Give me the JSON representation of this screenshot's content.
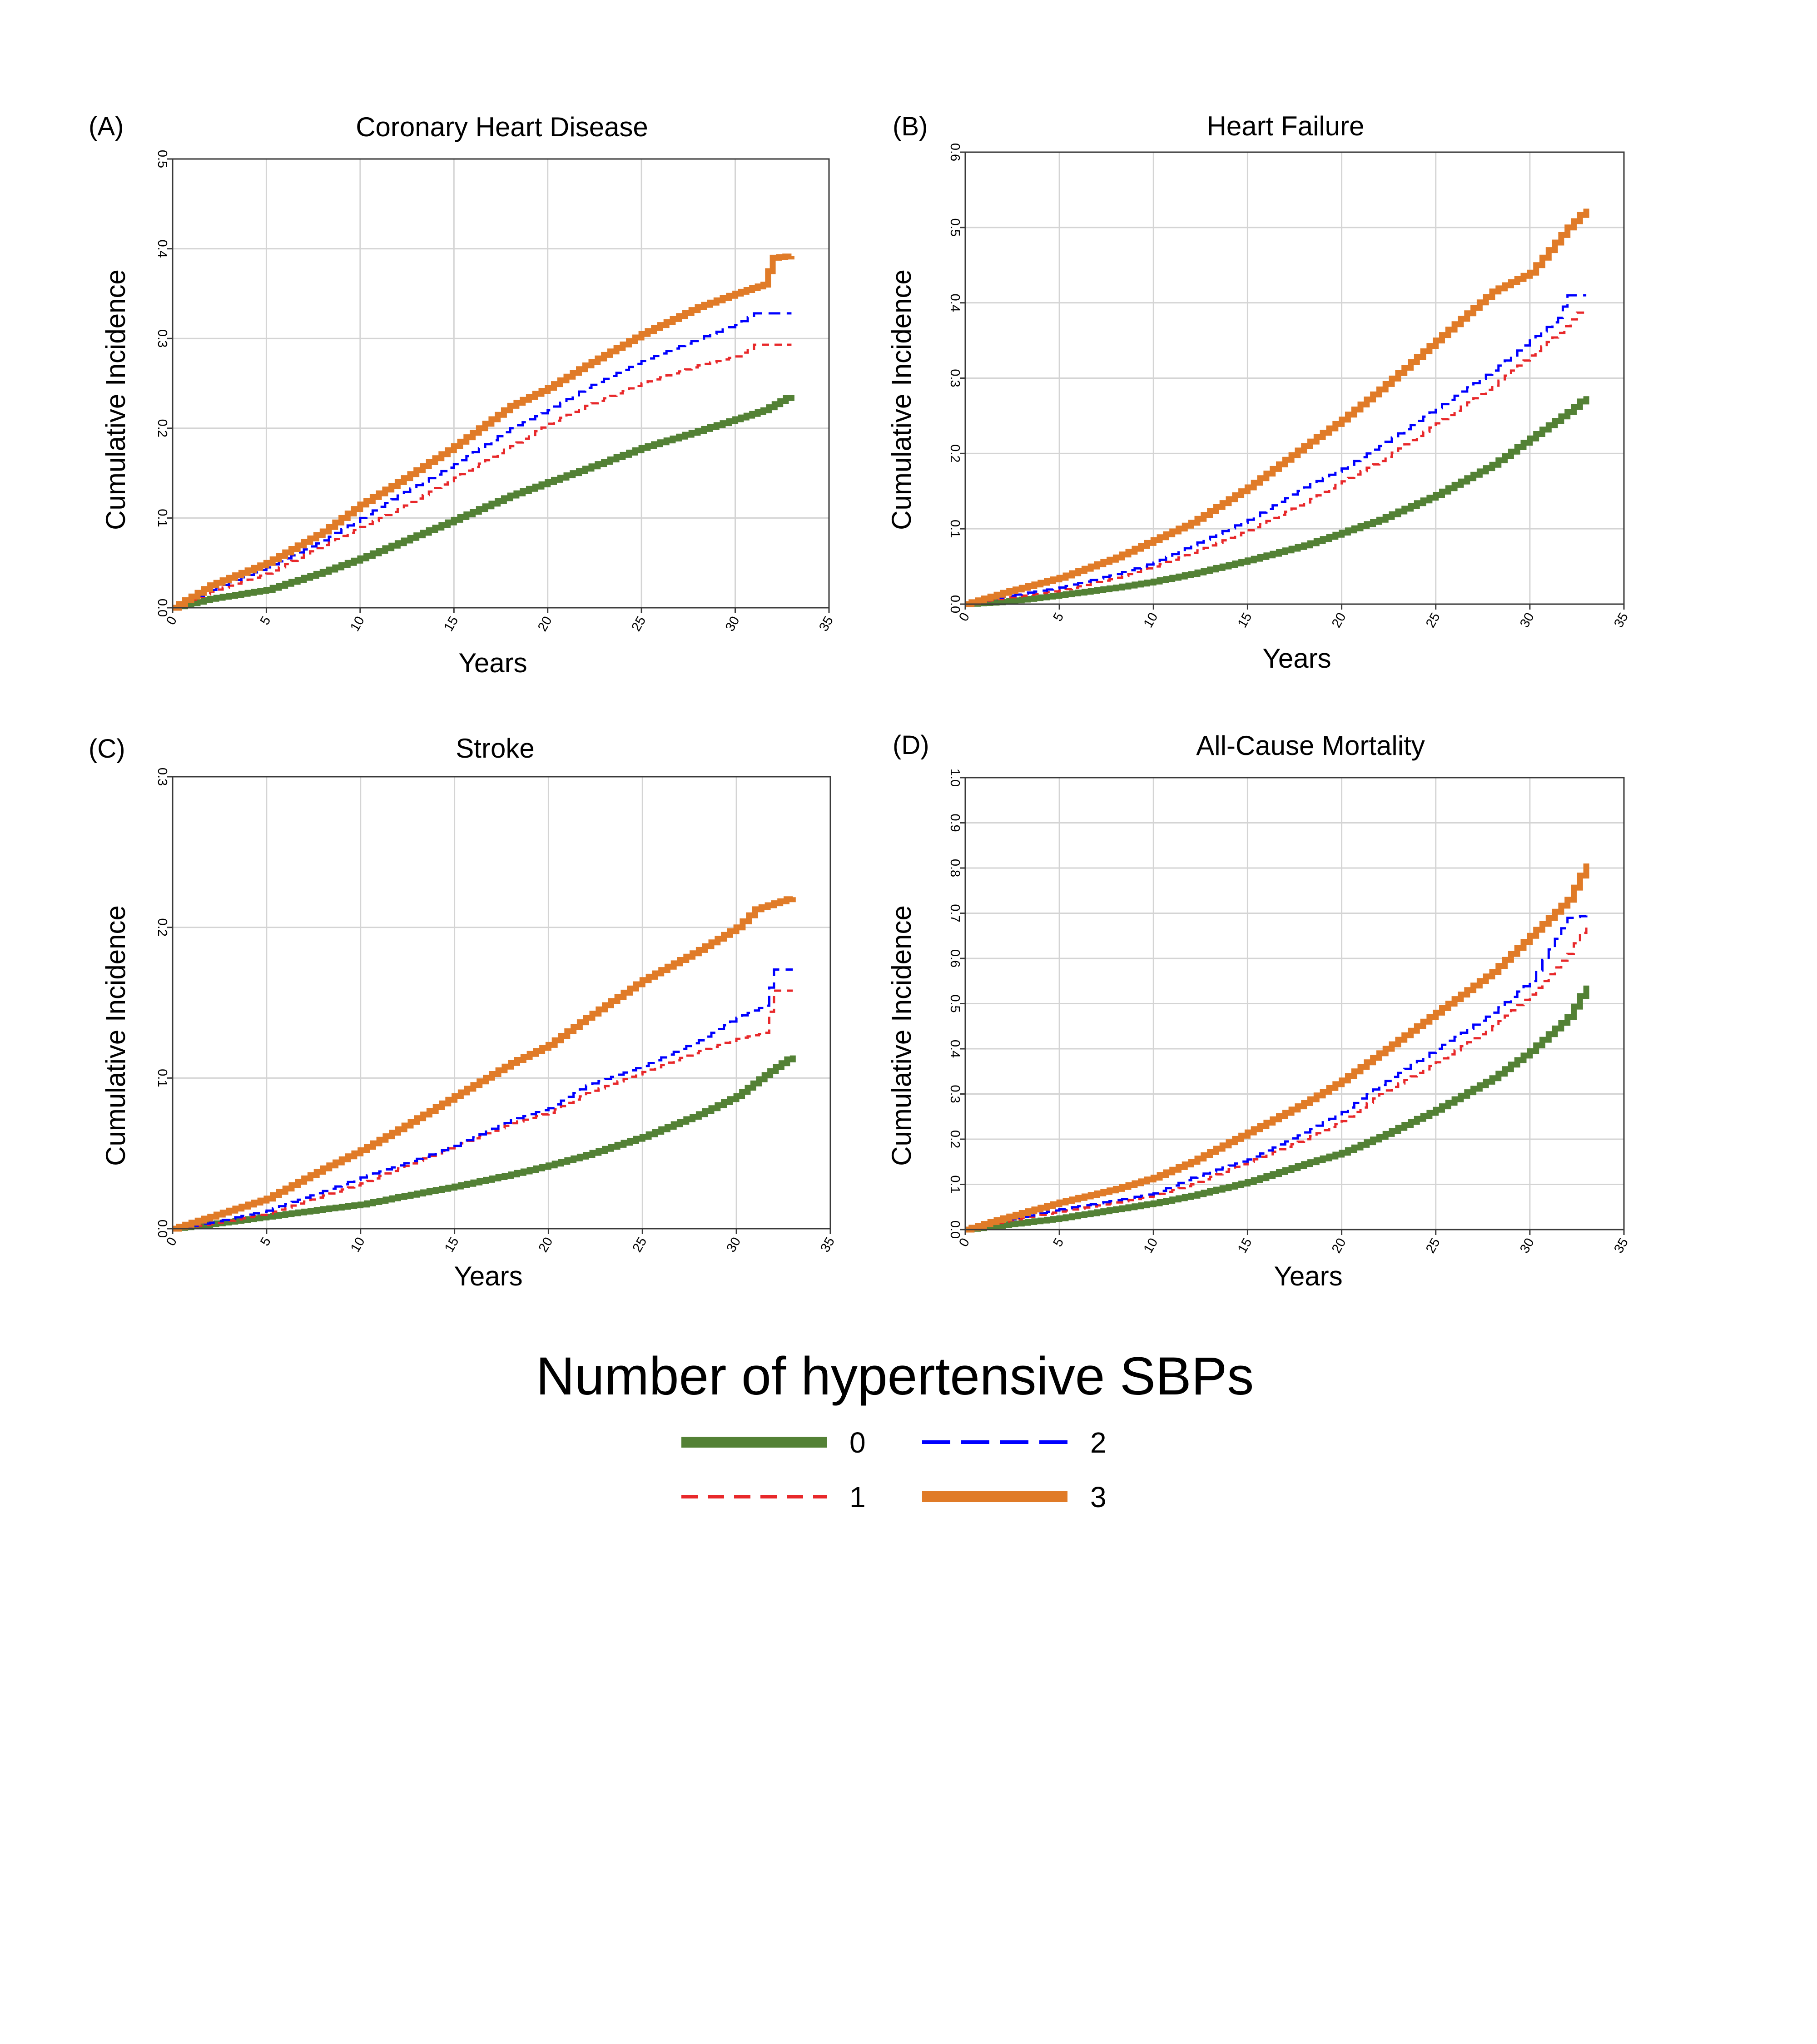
{
  "legend": {
    "title": "Number of hypertensive SBPs",
    "entries": [
      {
        "label": "0",
        "color": "#538135",
        "style": "solid"
      },
      {
        "label": "2",
        "color": "#0000ff",
        "style": "dashed"
      },
      {
        "label": "1",
        "color": "#e8282a",
        "style": "dashed"
      },
      {
        "label": "3",
        "color": "#e07b28",
        "style": "solid"
      }
    ]
  },
  "chart_data": [
    {
      "type": "line",
      "panel": "(A)",
      "title": "Coronary Heart Disease",
      "xlabel": "Years",
      "ylabel": "Cumulative Incidence",
      "xlim": [
        0,
        35
      ],
      "ylim": [
        0,
        0.5
      ],
      "xticks": [
        "0",
        "5",
        "10",
        "15",
        "20",
        "25",
        "30",
        "35"
      ],
      "yticks": [
        "0.0",
        "0.1",
        "0.2",
        "0.3",
        "0.4",
        "0.5"
      ],
      "series": [
        {
          "name": "0",
          "x": [
            0,
            2,
            5,
            8,
            10,
            12,
            15,
            18,
            20,
            22,
            25,
            28,
            30,
            31.5,
            33
          ],
          "y": [
            0,
            0.01,
            0.02,
            0.04,
            0.055,
            0.072,
            0.098,
            0.125,
            0.14,
            0.155,
            0.178,
            0.197,
            0.21,
            0.22,
            0.237
          ]
        },
        {
          "name": "1",
          "x": [
            0,
            2,
            5,
            8,
            10,
            12,
            15,
            18,
            20,
            22,
            25,
            28,
            30,
            31,
            33
          ],
          "y": [
            0,
            0.018,
            0.038,
            0.07,
            0.09,
            0.11,
            0.145,
            0.18,
            0.205,
            0.225,
            0.25,
            0.27,
            0.28,
            0.293,
            0.293
          ]
        },
        {
          "name": "2",
          "x": [
            0,
            2,
            5,
            8,
            10,
            12,
            15,
            18,
            20,
            22,
            25,
            28,
            30,
            31,
            33
          ],
          "y": [
            0,
            0.02,
            0.045,
            0.075,
            0.1,
            0.125,
            0.16,
            0.2,
            0.22,
            0.245,
            0.275,
            0.3,
            0.315,
            0.328,
            0.328
          ]
        },
        {
          "name": "3",
          "x": [
            0,
            2,
            5,
            8,
            10,
            12,
            15,
            18,
            20,
            22,
            25,
            28,
            30,
            31.5,
            32,
            33
          ],
          "y": [
            0,
            0.025,
            0.05,
            0.085,
            0.115,
            0.14,
            0.18,
            0.225,
            0.245,
            0.27,
            0.305,
            0.335,
            0.35,
            0.36,
            0.39,
            0.392
          ]
        }
      ]
    },
    {
      "type": "line",
      "panel": "(B)",
      "title": "Heart Failure",
      "xlabel": "Years",
      "ylabel": "Cumulative Incidence",
      "xlim": [
        0,
        35
      ],
      "ylim": [
        0,
        0.6
      ],
      "xticks": [
        "0",
        "5",
        "10",
        "15",
        "20",
        "25",
        "30",
        "35"
      ],
      "yticks": [
        "0.0",
        "0.1",
        "0.2",
        "0.3",
        "0.4",
        "0.5",
        "0.6"
      ],
      "series": [
        {
          "name": "0",
          "x": [
            0,
            2,
            5,
            8,
            10,
            12,
            15,
            18,
            20,
            22,
            25,
            28,
            30,
            32,
            33
          ],
          "y": [
            0,
            0.003,
            0.012,
            0.022,
            0.03,
            0.04,
            0.058,
            0.078,
            0.095,
            0.112,
            0.145,
            0.185,
            0.22,
            0.255,
            0.276
          ]
        },
        {
          "name": "1",
          "x": [
            0,
            2,
            5,
            8,
            10,
            12,
            15,
            18,
            20,
            22,
            25,
            28,
            30,
            31.5,
            32.5,
            33
          ],
          "y": [
            0,
            0.008,
            0.018,
            0.035,
            0.05,
            0.068,
            0.098,
            0.135,
            0.163,
            0.19,
            0.24,
            0.29,
            0.33,
            0.36,
            0.387,
            0.387
          ]
        },
        {
          "name": "2",
          "x": [
            0,
            2,
            5,
            8,
            10,
            12,
            15,
            18,
            20,
            22,
            25,
            28,
            30,
            31.5,
            32,
            33
          ],
          "y": [
            0,
            0.01,
            0.022,
            0.04,
            0.055,
            0.078,
            0.112,
            0.155,
            0.18,
            0.21,
            0.26,
            0.31,
            0.35,
            0.38,
            0.41,
            0.41
          ]
        },
        {
          "name": "3",
          "x": [
            0,
            2,
            5,
            8,
            10,
            12,
            15,
            18,
            20,
            22,
            25,
            28,
            30,
            31,
            32,
            33
          ],
          "y": [
            0,
            0.015,
            0.035,
            0.062,
            0.085,
            0.108,
            0.155,
            0.21,
            0.245,
            0.285,
            0.35,
            0.415,
            0.44,
            0.47,
            0.5,
            0.525
          ]
        }
      ]
    },
    {
      "type": "line",
      "panel": "(C)",
      "title": "Stroke",
      "xlabel": "Years",
      "ylabel": "Cumulative Incidence",
      "xlim": [
        0,
        35
      ],
      "ylim": [
        0,
        0.3
      ],
      "xticks": [
        "0",
        "5",
        "10",
        "15",
        "20",
        "25",
        "30",
        "35"
      ],
      "yticks": [
        "0.0",
        "0.1",
        "0.2",
        "0.3"
      ],
      "series": [
        {
          "name": "0",
          "x": [
            0,
            2,
            5,
            8,
            10,
            12,
            15,
            18,
            20,
            22,
            25,
            28,
            30,
            31.5,
            33
          ],
          "y": [
            0,
            0.003,
            0.008,
            0.013,
            0.016,
            0.021,
            0.028,
            0.036,
            0.042,
            0.049,
            0.061,
            0.076,
            0.088,
            0.102,
            0.115
          ]
        },
        {
          "name": "1",
          "x": [
            0,
            2,
            5,
            8,
            10,
            12,
            15,
            18,
            20,
            22,
            25,
            28,
            30,
            31.5,
            32,
            33
          ],
          "y": [
            0,
            0.003,
            0.01,
            0.022,
            0.03,
            0.04,
            0.055,
            0.07,
            0.077,
            0.09,
            0.104,
            0.118,
            0.126,
            0.13,
            0.158,
            0.158
          ]
        },
        {
          "name": "2",
          "x": [
            0,
            2,
            5,
            8,
            10,
            12,
            15,
            18,
            20,
            22,
            25,
            28,
            30,
            31.5,
            32,
            33
          ],
          "y": [
            0,
            0.004,
            0.012,
            0.025,
            0.034,
            0.042,
            0.055,
            0.072,
            0.08,
            0.095,
            0.108,
            0.125,
            0.14,
            0.148,
            0.172,
            0.172
          ]
        },
        {
          "name": "3",
          "x": [
            0,
            2,
            5,
            8,
            10,
            12,
            15,
            18,
            20,
            22,
            25,
            28,
            30,
            31,
            33
          ],
          "y": [
            0,
            0.008,
            0.02,
            0.04,
            0.052,
            0.066,
            0.088,
            0.11,
            0.122,
            0.14,
            0.165,
            0.185,
            0.2,
            0.212,
            0.22
          ]
        }
      ]
    },
    {
      "type": "line",
      "panel": "(D)",
      "title": "All-Cause Mortality",
      "xlabel": "Years",
      "ylabel": "Cumulative Incidence",
      "xlim": [
        0,
        35
      ],
      "ylim": [
        0,
        1.0
      ],
      "xticks": [
        "0",
        "5",
        "10",
        "15",
        "20",
        "25",
        "30",
        "35"
      ],
      "yticks": [
        "0.0",
        "0.1",
        "0.2",
        "0.3",
        "0.4",
        "0.5",
        "0.6",
        "0.7",
        "0.8",
        "0.9",
        "1.0"
      ],
      "series": [
        {
          "name": "0",
          "x": [
            0,
            2,
            5,
            8,
            10,
            12,
            15,
            18,
            20,
            22,
            25,
            28,
            30,
            32,
            33
          ],
          "y": [
            0,
            0.01,
            0.025,
            0.045,
            0.058,
            0.075,
            0.105,
            0.145,
            0.17,
            0.205,
            0.265,
            0.335,
            0.395,
            0.47,
            0.54
          ]
        },
        {
          "name": "1",
          "x": [
            0,
            2,
            5,
            8,
            10,
            12,
            15,
            18,
            20,
            22,
            25,
            28,
            30,
            32,
            33
          ],
          "y": [
            0,
            0.018,
            0.04,
            0.06,
            0.075,
            0.1,
            0.15,
            0.2,
            0.24,
            0.3,
            0.37,
            0.45,
            0.52,
            0.61,
            0.68
          ]
        },
        {
          "name": "2",
          "x": [
            0,
            2,
            5,
            8,
            10,
            12,
            15,
            18,
            20,
            22,
            25,
            28,
            30,
            32,
            33
          ],
          "y": [
            0,
            0.02,
            0.045,
            0.065,
            0.08,
            0.115,
            0.155,
            0.215,
            0.26,
            0.32,
            0.4,
            0.48,
            0.55,
            0.69,
            0.695
          ]
        },
        {
          "name": "3",
          "x": [
            0,
            2,
            5,
            8,
            10,
            12,
            15,
            18,
            20,
            22,
            25,
            28,
            30,
            32,
            33
          ],
          "y": [
            0,
            0.025,
            0.06,
            0.09,
            0.115,
            0.15,
            0.215,
            0.28,
            0.33,
            0.39,
            0.48,
            0.57,
            0.65,
            0.73,
            0.81
          ]
        }
      ]
    }
  ]
}
